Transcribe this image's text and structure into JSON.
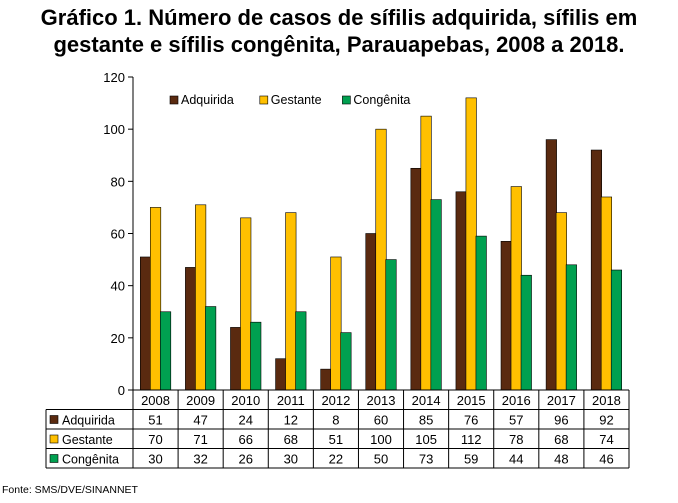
{
  "title_line1": "Gráfico 1. Número de casos de sífilis adquirida, sífilis em",
  "title_line2": "gestante e sífilis congênita, Parauapebas, 2008 a 2018.",
  "source": "Fonte: SMS/DVE/SINANNET",
  "chart_data": {
    "type": "bar",
    "title": "Gráfico 1. Número de casos de sífilis adquirida, sífilis em gestante e sífilis congênita, Parauapebas, 2008 a 2018.",
    "categories": [
      "2008",
      "2009",
      "2010",
      "2011",
      "2012",
      "2013",
      "2014",
      "2015",
      "2016",
      "2017",
      "2018"
    ],
    "series": [
      {
        "name": "Adquirida",
        "color": "#5a2a10",
        "values": [
          51,
          47,
          24,
          12,
          8,
          60,
          85,
          76,
          57,
          96,
          92
        ]
      },
      {
        "name": "Gestante",
        "color": "#ffc000",
        "values": [
          70,
          71,
          66,
          68,
          51,
          100,
          105,
          112,
          78,
          68,
          74
        ]
      },
      {
        "name": "Congênita",
        "color": "#00a050",
        "values": [
          30,
          32,
          26,
          30,
          22,
          50,
          73,
          59,
          44,
          48,
          46
        ]
      }
    ],
    "ylim": [
      0,
      120
    ],
    "yticks": [
      0,
      20,
      40,
      60,
      80,
      100,
      120
    ],
    "grid": false,
    "legend_position": "top-left",
    "data_table": true
  }
}
